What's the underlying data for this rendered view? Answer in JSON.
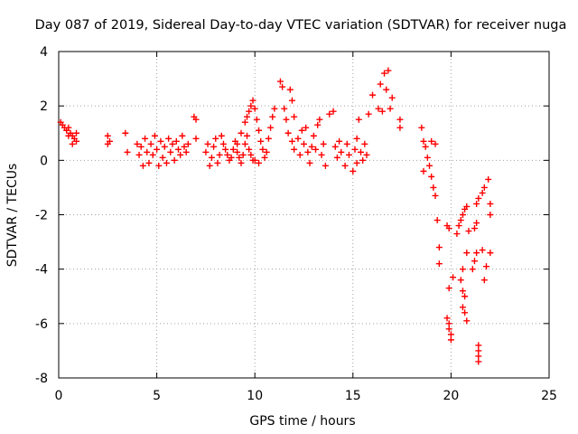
{
  "chart_data": {
    "type": "scatter",
    "title": "Day 087 of 2019, Sidereal Day-to-day VTEC variation (SDTVAR) for receiver nuga",
    "xlabel": "GPS time / hours",
    "ylabel": "SDTVAR / TECUs",
    "xlim": [
      0,
      25
    ],
    "ylim": [
      -8,
      4
    ],
    "xticks": [
      "0",
      "5",
      "10",
      "15",
      "20",
      "25"
    ],
    "yticks": [
      "4",
      "2",
      "0",
      "-2",
      "-4",
      "-6",
      "-8"
    ],
    "grid": true,
    "marker": "+",
    "color": "#ff0000",
    "series": [
      {
        "name": "SDTVAR",
        "points": [
          [
            0.1,
            1.4
          ],
          [
            0.2,
            1.3
          ],
          [
            0.3,
            1.2
          ],
          [
            0.4,
            1.1
          ],
          [
            0.5,
            1.2
          ],
          [
            0.6,
            1.0
          ],
          [
            0.7,
            0.9
          ],
          [
            0.8,
            0.8
          ],
          [
            0.9,
            0.7
          ],
          [
            0.9,
            1.0
          ],
          [
            0.5,
            0.9
          ],
          [
            0.7,
            0.6
          ],
          [
            2.5,
            0.9
          ],
          [
            2.5,
            0.6
          ],
          [
            2.6,
            0.7
          ],
          [
            3.4,
            1.0
          ],
          [
            3.5,
            0.3
          ],
          [
            4.0,
            0.6
          ],
          [
            4.1,
            0.2
          ],
          [
            4.2,
            0.5
          ],
          [
            4.3,
            -0.2
          ],
          [
            4.4,
            0.8
          ],
          [
            4.5,
            0.3
          ],
          [
            4.6,
            -0.1
          ],
          [
            4.7,
            0.6
          ],
          [
            4.8,
            0.2
          ],
          [
            4.9,
            0.9
          ],
          [
            5.0,
            0.4
          ],
          [
            5.1,
            -0.2
          ],
          [
            5.2,
            0.7
          ],
          [
            5.3,
            0.1
          ],
          [
            5.4,
            0.5
          ],
          [
            5.5,
            -0.1
          ],
          [
            5.6,
            0.8
          ],
          [
            5.7,
            0.3
          ],
          [
            5.8,
            0.6
          ],
          [
            5.9,
            0.0
          ],
          [
            6.0,
            0.7
          ],
          [
            6.1,
            0.4
          ],
          [
            6.2,
            0.2
          ],
          [
            6.3,
            0.9
          ],
          [
            6.4,
            0.5
          ],
          [
            6.5,
            0.3
          ],
          [
            6.6,
            0.6
          ],
          [
            6.9,
            1.6
          ],
          [
            7.0,
            1.5
          ],
          [
            7.0,
            0.8
          ],
          [
            7.5,
            0.3
          ],
          [
            7.6,
            0.6
          ],
          [
            7.7,
            -0.2
          ],
          [
            7.8,
            0.1
          ],
          [
            7.9,
            0.5
          ],
          [
            8.0,
            0.8
          ],
          [
            8.1,
            -0.1
          ],
          [
            8.2,
            0.2
          ],
          [
            8.3,
            0.9
          ],
          [
            8.4,
            0.6
          ],
          [
            8.5,
            0.4
          ],
          [
            8.6,
            0.2
          ],
          [
            8.7,
            0.0
          ],
          [
            8.8,
            0.1
          ],
          [
            8.9,
            0.4
          ],
          [
            9.0,
            0.7
          ],
          [
            9.1,
            0.3
          ],
          [
            9.2,
            0.1
          ],
          [
            9.3,
            -0.1
          ],
          [
            9.4,
            0.2
          ],
          [
            9.5,
            0.6
          ],
          [
            9.6,
            0.9
          ],
          [
            9.7,
            0.4
          ],
          [
            9.8,
            0.2
          ],
          [
            9.9,
            0.0
          ],
          [
            9.1,
            0.6
          ],
          [
            9.3,
            1.0
          ],
          [
            9.5,
            1.4
          ],
          [
            9.6,
            1.6
          ],
          [
            9.7,
            1.8
          ],
          [
            9.8,
            2.0
          ],
          [
            9.9,
            2.2
          ],
          [
            10.0,
            1.9
          ],
          [
            10.1,
            1.5
          ],
          [
            10.2,
            1.1
          ],
          [
            10.3,
            0.7
          ],
          [
            10.4,
            0.4
          ],
          [
            10.5,
            0.1
          ],
          [
            10.6,
            0.3
          ],
          [
            10.7,
            0.8
          ],
          [
            10.8,
            1.2
          ],
          [
            10.9,
            1.6
          ],
          [
            11.0,
            1.9
          ],
          [
            10.0,
            0.0
          ],
          [
            10.2,
            -0.1
          ],
          [
            11.3,
            2.9
          ],
          [
            11.4,
            2.7
          ],
          [
            11.5,
            1.9
          ],
          [
            11.6,
            1.5
          ],
          [
            11.8,
            2.6
          ],
          [
            11.9,
            2.2
          ],
          [
            12.0,
            1.6
          ],
          [
            11.7,
            1.0
          ],
          [
            11.9,
            0.7
          ],
          [
            12.0,
            0.4
          ],
          [
            12.2,
            0.8
          ],
          [
            12.3,
            0.2
          ],
          [
            12.4,
            1.1
          ],
          [
            12.5,
            0.6
          ],
          [
            12.6,
            1.2
          ],
          [
            12.7,
            0.3
          ],
          [
            12.8,
            -0.1
          ],
          [
            12.9,
            0.5
          ],
          [
            13.0,
            0.9
          ],
          [
            13.1,
            0.4
          ],
          [
            13.2,
            1.3
          ],
          [
            13.3,
            1.5
          ],
          [
            13.4,
            0.2
          ],
          [
            13.5,
            0.6
          ],
          [
            13.6,
            -0.2
          ],
          [
            13.8,
            1.7
          ],
          [
            14.0,
            1.8
          ],
          [
            14.1,
            0.5
          ],
          [
            14.2,
            0.1
          ],
          [
            14.3,
            0.7
          ],
          [
            14.4,
            0.3
          ],
          [
            14.6,
            -0.2
          ],
          [
            14.7,
            0.6
          ],
          [
            14.8,
            0.2
          ],
          [
            15.0,
            -0.4
          ],
          [
            15.1,
            0.4
          ],
          [
            15.2,
            0.8
          ],
          [
            15.2,
            -0.1
          ],
          [
            15.3,
            1.5
          ],
          [
            15.4,
            0.3
          ],
          [
            15.5,
            0.0
          ],
          [
            15.6,
            0.6
          ],
          [
            15.7,
            0.2
          ],
          [
            15.8,
            1.7
          ],
          [
            16.0,
            2.4
          ],
          [
            16.3,
            1.9
          ],
          [
            16.4,
            2.8
          ],
          [
            16.5,
            1.8
          ],
          [
            16.6,
            3.2
          ],
          [
            16.7,
            2.6
          ],
          [
            16.8,
            3.3
          ],
          [
            16.9,
            1.9
          ],
          [
            17.0,
            2.3
          ],
          [
            17.4,
            1.5
          ],
          [
            17.4,
            1.2
          ],
          [
            18.5,
            1.2
          ],
          [
            18.6,
            0.7
          ],
          [
            18.6,
            -0.4
          ],
          [
            18.7,
            0.5
          ],
          [
            18.8,
            0.1
          ],
          [
            18.9,
            -0.2
          ],
          [
            19.0,
            -0.6
          ],
          [
            19.1,
            -1.0
          ],
          [
            19.2,
            -1.3
          ],
          [
            19.0,
            0.7
          ],
          [
            19.2,
            0.6
          ],
          [
            19.3,
            -2.2
          ],
          [
            19.4,
            -3.2
          ],
          [
            19.4,
            -3.8
          ],
          [
            19.8,
            -2.4
          ],
          [
            19.9,
            -2.5
          ],
          [
            19.9,
            -4.7
          ],
          [
            19.8,
            -5.8
          ],
          [
            19.9,
            -6.0
          ],
          [
            19.9,
            -6.2
          ],
          [
            20.0,
            -6.4
          ],
          [
            20.0,
            -6.6
          ],
          [
            20.1,
            -4.3
          ],
          [
            20.3,
            -2.7
          ],
          [
            20.4,
            -2.4
          ],
          [
            20.5,
            -2.2
          ],
          [
            20.6,
            -2.0
          ],
          [
            20.7,
            -1.8
          ],
          [
            20.8,
            -1.7
          ],
          [
            20.6,
            -4.0
          ],
          [
            20.5,
            -4.4
          ],
          [
            20.6,
            -4.8
          ],
          [
            20.7,
            -5.0
          ],
          [
            20.6,
            -5.4
          ],
          [
            20.7,
            -5.6
          ],
          [
            20.8,
            -5.9
          ],
          [
            20.8,
            -3.4
          ],
          [
            20.9,
            -2.6
          ],
          [
            21.1,
            -4.0
          ],
          [
            21.2,
            -3.7
          ],
          [
            21.3,
            -3.4
          ],
          [
            21.2,
            -2.5
          ],
          [
            21.3,
            -2.3
          ],
          [
            21.3,
            -1.6
          ],
          [
            21.4,
            -1.4
          ],
          [
            21.6,
            -1.2
          ],
          [
            21.7,
            -1.0
          ],
          [
            21.9,
            -0.7
          ],
          [
            21.6,
            -3.3
          ],
          [
            21.8,
            -3.9
          ],
          [
            21.7,
            -4.4
          ],
          [
            22.0,
            -3.4
          ],
          [
            22.0,
            -2.0
          ],
          [
            22.0,
            -1.6
          ],
          [
            21.4,
            -6.8
          ],
          [
            21.4,
            -7.0
          ],
          [
            21.4,
            -7.2
          ],
          [
            21.4,
            -7.4
          ]
        ]
      }
    ]
  }
}
